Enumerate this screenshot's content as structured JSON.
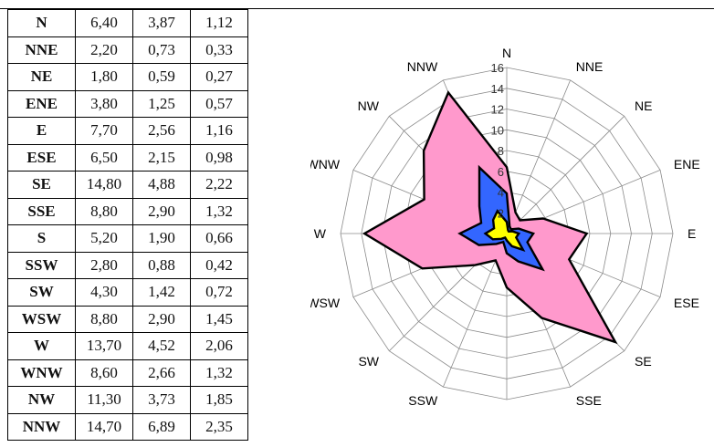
{
  "table": {
    "rows": [
      {
        "dir": "N",
        "v1": "6,40",
        "v2": "3,87",
        "v3": "1,12"
      },
      {
        "dir": "NNE",
        "v1": "2,20",
        "v2": "0,73",
        "v3": "0,33"
      },
      {
        "dir": "NE",
        "v1": "1,80",
        "v2": "0,59",
        "v3": "0,27"
      },
      {
        "dir": "ENE",
        "v1": "3,80",
        "v2": "1,25",
        "v3": "0,57"
      },
      {
        "dir": "E",
        "v1": "7,70",
        "v2": "2,56",
        "v3": "1,16"
      },
      {
        "dir": "ESE",
        "v1": "6,50",
        "v2": "2,15",
        "v3": "0,98"
      },
      {
        "dir": "SE",
        "v1": "14,80",
        "v2": "4,88",
        "v3": "2,22"
      },
      {
        "dir": "SSE",
        "v1": "8,80",
        "v2": "2,90",
        "v3": "1,32"
      },
      {
        "dir": "S",
        "v1": "5,20",
        "v2": "1,90",
        "v3": "0,66"
      },
      {
        "dir": "SSW",
        "v1": "2,80",
        "v2": "0,88",
        "v3": "0,42"
      },
      {
        "dir": "SW",
        "v1": "4,30",
        "v2": "1,42",
        "v3": "0,72"
      },
      {
        "dir": "WSW",
        "v1": "8,80",
        "v2": "2,90",
        "v3": "1,45"
      },
      {
        "dir": "W",
        "v1": "13,70",
        "v2": "4,52",
        "v3": "2,06"
      },
      {
        "dir": "WNW",
        "v1": "8,60",
        "v2": "2,66",
        "v3": "1,32"
      },
      {
        "dir": "NW",
        "v1": "11,30",
        "v2": "3,73",
        "v3": "1,85"
      },
      {
        "dir": "NNW",
        "v1": "14,70",
        "v2": "6,89",
        "v3": "2,35"
      }
    ]
  },
  "chart_data": {
    "type": "radar",
    "categories": [
      "N",
      "NNE",
      "NE",
      "ENE",
      "E",
      "ESE",
      "SE",
      "SSE",
      "S",
      "SSW",
      "SW",
      "WSW",
      "W",
      "WNW",
      "NW",
      "NNW"
    ],
    "rlim": [
      0,
      16
    ],
    "ticks": [
      "2",
      "4",
      "6",
      "8",
      "10",
      "12",
      "14",
      "16"
    ],
    "grid": true,
    "series": [
      {
        "values": [
          6.4,
          2.2,
          1.8,
          3.8,
          7.7,
          6.5,
          14.8,
          8.8,
          5.2,
          2.8,
          4.3,
          8.8,
          13.7,
          8.6,
          11.3,
          14.7
        ],
        "color": "#ff99cc"
      },
      {
        "values": [
          3.87,
          0.73,
          0.59,
          1.25,
          2.56,
          2.15,
          4.88,
          2.9,
          1.9,
          0.88,
          1.42,
          2.9,
          4.52,
          2.66,
          3.73,
          6.89
        ],
        "color": "#3366ff"
      },
      {
        "values": [
          1.12,
          0.33,
          0.27,
          0.57,
          1.16,
          0.98,
          2.22,
          1.32,
          0.66,
          0.42,
          0.72,
          1.45,
          2.06,
          1.32,
          1.85,
          2.35
        ],
        "color": "#ffff00"
      }
    ]
  }
}
